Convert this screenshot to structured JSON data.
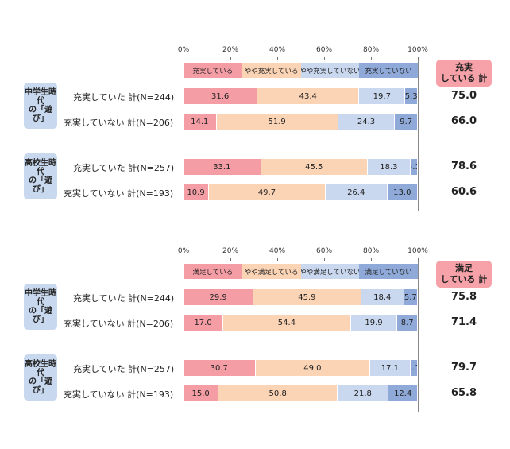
{
  "chart_data": [
    {
      "type": "bar",
      "stacked": true,
      "orientation": "horizontal",
      "x_ticks": [
        "0%",
        "20%",
        "40%",
        "60%",
        "80%",
        "100%"
      ],
      "legend": [
        "充実している",
        "やや充実している",
        "やや充実していない",
        "充実していない"
      ],
      "total_header": [
        "充実",
        "している 計"
      ],
      "groups": [
        {
          "label_lines": [
            "中学生時代",
            "の「遊び」"
          ],
          "rows": [
            {
              "label": "充実していた 計(N=244)",
              "values": [
                31.6,
                43.4,
                19.7,
                5.3
              ],
              "labels": [
                "31.6",
                "43.4",
                "19.7",
                "5.3"
              ],
              "total": "75.0"
            },
            {
              "label": "充実していない 計(N=206)",
              "values": [
                14.1,
                51.9,
                24.3,
                9.7
              ],
              "labels": [
                "14.1",
                "51.9",
                "24.3",
                "9.7"
              ],
              "total": "66.0"
            }
          ]
        },
        {
          "label_lines": [
            "高校生時代",
            "の「遊び」"
          ],
          "rows": [
            {
              "label": "充実していた 計(N=257)",
              "values": [
                33.1,
                45.5,
                18.3,
                3.1
              ],
              "labels": [
                "33.1",
                "45.5",
                "18.3",
                "3.1"
              ],
              "total": "78.6"
            },
            {
              "label": "充実していない 計(N=193)",
              "values": [
                10.9,
                49.7,
                26.4,
                13.0
              ],
              "labels": [
                "10.9",
                "49.7",
                "26.4",
                "13.0"
              ],
              "total": "60.6"
            }
          ]
        }
      ]
    },
    {
      "type": "bar",
      "stacked": true,
      "orientation": "horizontal",
      "x_ticks": [
        "0%",
        "20%",
        "40%",
        "60%",
        "80%",
        "100%"
      ],
      "legend": [
        "満足している",
        "やや満足している",
        "やや満足していない",
        "満足していない"
      ],
      "total_header": [
        "満足",
        "している 計"
      ],
      "groups": [
        {
          "label_lines": [
            "中学生時代",
            "の「遊び」"
          ],
          "rows": [
            {
              "label": "充実していた 計(N=244)",
              "values": [
                29.9,
                45.9,
                18.4,
                5.7
              ],
              "labels": [
                "29.9",
                "45.9",
                "18.4",
                "5.7"
              ],
              "total": "75.8"
            },
            {
              "label": "充実していない 計(N=206)",
              "values": [
                17.0,
                54.4,
                19.9,
                8.7
              ],
              "labels": [
                "17.0",
                "54.4",
                "19.9",
                "8.7"
              ],
              "total": "71.4"
            }
          ]
        },
        {
          "label_lines": [
            "高校生時代",
            "の「遊び」"
          ],
          "rows": [
            {
              "label": "充実していた 計(N=257)",
              "values": [
                30.7,
                49.0,
                17.1,
                3.1
              ],
              "labels": [
                "30.7",
                "49.0",
                "17.1",
                "3.1"
              ],
              "total": "79.7"
            },
            {
              "label": "充実していない 計(N=193)",
              "values": [
                15.0,
                50.8,
                21.8,
                12.4
              ],
              "labels": [
                "15.0",
                "50.8",
                "21.8",
                "12.4"
              ],
              "total": "65.8"
            }
          ]
        }
      ]
    }
  ],
  "colors": [
    "#f49da5",
    "#fbd3b5",
    "#c9d7ef",
    "#8faad8"
  ]
}
